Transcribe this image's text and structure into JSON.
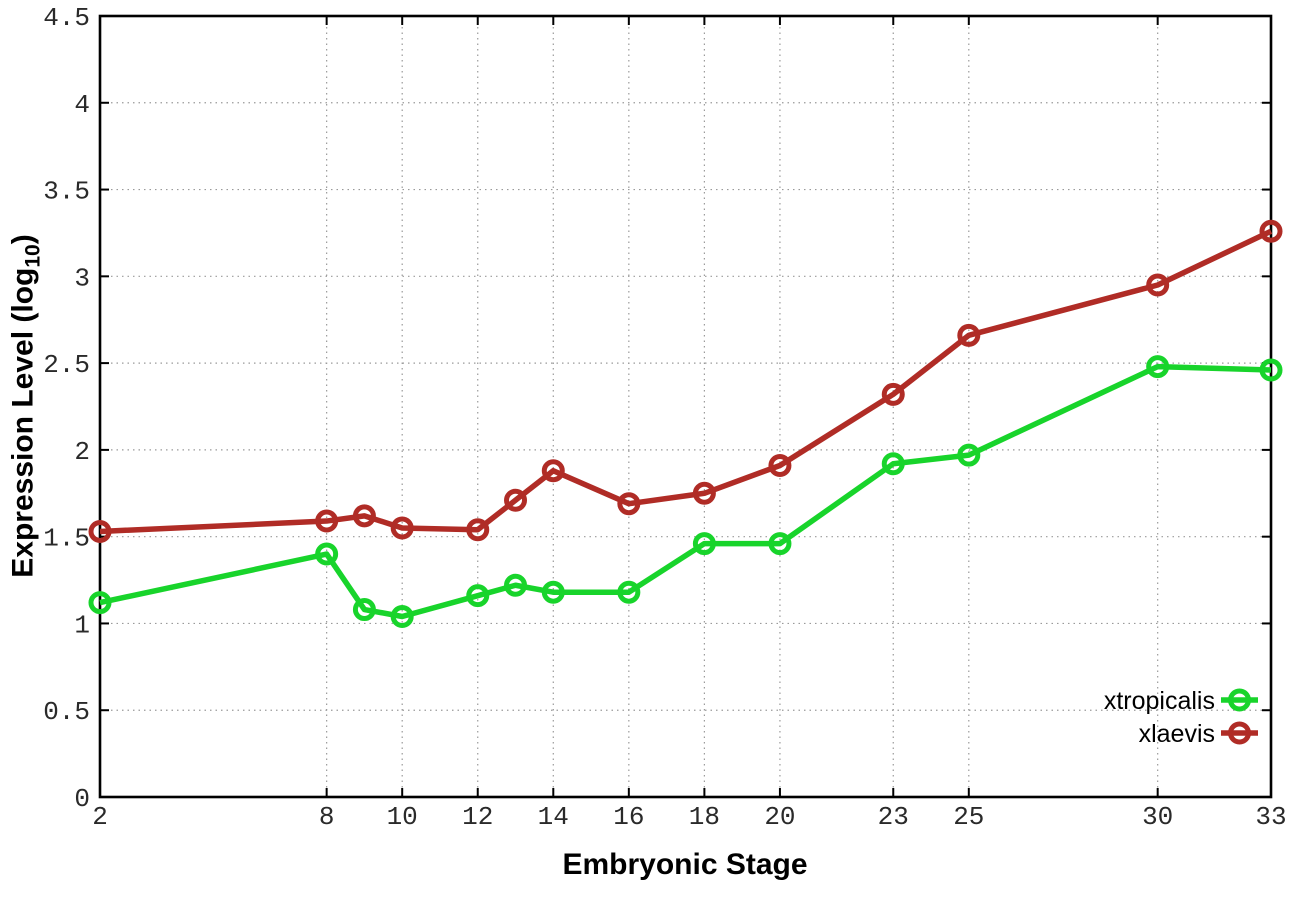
{
  "chart_data": {
    "type": "line",
    "title": "",
    "xlabel": "Embryonic Stage",
    "ylabel": {
      "prefix": "Expression Level (log",
      "sub": "10",
      "suffix": ")"
    },
    "xlim": [
      2,
      33
    ],
    "ylim": [
      0,
      4.5
    ],
    "x_ticks": [
      2,
      8,
      10,
      12,
      14,
      16,
      18,
      20,
      23,
      25,
      30,
      33
    ],
    "y_ticks": [
      0,
      0.5,
      1,
      1.5,
      2,
      2.5,
      3,
      3.5,
      4,
      4.5
    ],
    "grid": true,
    "grid_style": "dotted",
    "legend_position": "inside-bottom-right",
    "x": [
      2,
      8,
      9,
      10,
      12,
      13,
      14,
      16,
      18,
      20,
      23,
      25,
      30,
      33
    ],
    "series": [
      {
        "name": "xtropicalis",
        "color": "#18d42b",
        "marker": "open-circle",
        "values": [
          1.12,
          1.4,
          1.08,
          1.04,
          1.16,
          1.22,
          1.18,
          1.18,
          1.46,
          1.46,
          1.92,
          1.97,
          2.48,
          2.46
        ]
      },
      {
        "name": "xlaevis",
        "color": "#b02c26",
        "marker": "open-circle",
        "values": [
          1.53,
          1.59,
          1.62,
          1.55,
          1.54,
          1.71,
          1.88,
          1.69,
          1.75,
          1.91,
          2.32,
          2.66,
          2.95,
          3.26
        ]
      }
    ],
    "colors": {
      "grid": "#9a9a9a",
      "axis": "#000000",
      "tick_text": "#2a2a2a",
      "background": "#ffffff"
    }
  }
}
